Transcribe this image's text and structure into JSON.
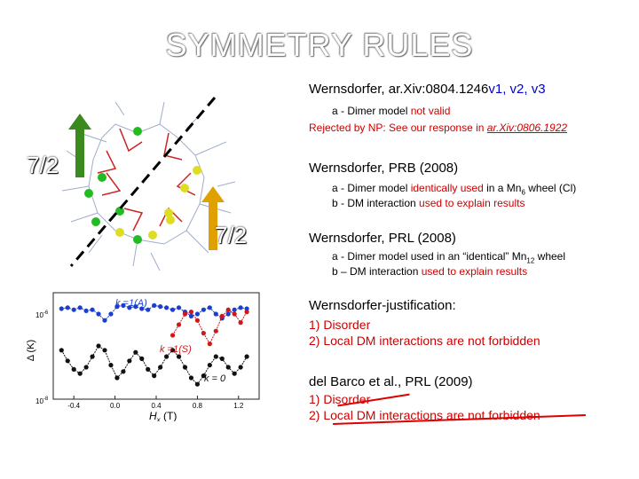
{
  "slide_title": "SYMMETRY RULES",
  "ref1": {
    "prefix": "Wernsdorfer, ar.Xiv:0804.1246",
    "versions": "v1, v2, v3",
    "item_a_prefix": "a -  Dimer model ",
    "item_a_red": "not valid",
    "rejected_text": "Rejected by NP: See our response in ",
    "rejected_link": "ar.Xiv:0806.1922"
  },
  "ref2": {
    "title": "Wernsdorfer, PRB (2008)",
    "a_prefix": "a -  Dimer model ",
    "a_red": "identically used",
    "a_mid": " in a Mn",
    "a_sub": "6",
    "a_end": " wheel (Cl)",
    "b_prefix": "b -  DM interaction ",
    "b_red": "used to explain results"
  },
  "ref3": {
    "title": "Wernsdorfer, PRL (2008)",
    "a_text": "a -  Dimer model used in an “identical” Mn",
    "a_sub": "12",
    "a_end": " wheel",
    "b_prefix": "b – DM interaction ",
    "b_red": "used to explain results"
  },
  "justification": {
    "title": "Wernsdorfer-justification:",
    "items": [
      "1)  Disorder",
      "2)  Local DM interactions are not forbidden"
    ]
  },
  "delbarco": {
    "title": "del Barco et al., PRL (2009)",
    "items": [
      "1)  Disorder",
      "2)  Local DM interactions are not forbidden"
    ]
  },
  "spin_labels": {
    "left": "7/2",
    "right": "7/2"
  },
  "colors": {
    "green_arrow": "#3a8a1e",
    "gold_arrow": "#e0a000",
    "red": "#cc0000",
    "blue": "#0000cc"
  },
  "plot": {
    "y_label": "Δ (K)",
    "x_label": "H",
    "x_label_sub": "x",
    "x_label_unit": " (T)",
    "y_tick_top": "10",
    "y_tick_top_exp": "-6",
    "y_tick_bottom": "10",
    "y_tick_bottom_exp": "-8",
    "x_ticks": [
      "-0.4",
      "0.0",
      "0.4",
      "0.8",
      "1.2"
    ],
    "label_blue": "k =1(A)",
    "label_red": "k =1(S)",
    "label_black": "k = 0"
  },
  "chart_data": {
    "type": "scatter",
    "xlim": [
      -0.6,
      1.4
    ],
    "x_ticks": [
      -0.4,
      0.0,
      0.4,
      0.8,
      1.2
    ],
    "ylabel": "Δ (K)",
    "xlabel": "Hx (T)",
    "series": [
      {
        "name": "k =1(A)",
        "color": "#1a3fd0",
        "x": [
          -0.52,
          -0.46,
          -0.4,
          -0.34,
          -0.28,
          -0.22,
          -0.16,
          -0.1,
          -0.04,
          0.02,
          0.08,
          0.14,
          0.2,
          0.26,
          0.32,
          0.38,
          0.44,
          0.5,
          0.56,
          0.62,
          0.68,
          0.74,
          0.8,
          0.86,
          0.92,
          0.98,
          1.04,
          1.1,
          1.16,
          1.22,
          1.28
        ],
        "y": [
          0.85,
          0.86,
          0.84,
          0.86,
          0.83,
          0.84,
          0.8,
          0.74,
          0.8,
          0.87,
          0.88,
          0.86,
          0.87,
          0.85,
          0.84,
          0.88,
          0.87,
          0.86,
          0.84,
          0.86,
          0.82,
          0.78,
          0.8,
          0.84,
          0.86,
          0.8,
          0.76,
          0.8,
          0.84,
          0.86,
          0.85
        ]
      },
      {
        "name": "k =1(S)",
        "color": "#d01818",
        "x": [
          0.56,
          0.62,
          0.68,
          0.74,
          0.8,
          0.86,
          0.92,
          0.98,
          1.04,
          1.1,
          1.16,
          1.22,
          1.28
        ],
        "y": [
          0.6,
          0.7,
          0.8,
          0.82,
          0.74,
          0.62,
          0.52,
          0.64,
          0.78,
          0.84,
          0.8,
          0.72,
          0.82
        ]
      },
      {
        "name": "k = 0",
        "color": "#111111",
        "x": [
          -0.52,
          -0.46,
          -0.4,
          -0.34,
          -0.28,
          -0.22,
          -0.16,
          -0.1,
          -0.04,
          0.02,
          0.08,
          0.14,
          0.2,
          0.26,
          0.32,
          0.38,
          0.44,
          0.5,
          0.56,
          0.62,
          0.68,
          0.74,
          0.8,
          0.86,
          0.92,
          0.98,
          1.04,
          1.1,
          1.16,
          1.22,
          1.28
        ],
        "y": [
          0.46,
          0.36,
          0.28,
          0.24,
          0.3,
          0.4,
          0.5,
          0.46,
          0.32,
          0.2,
          0.26,
          0.36,
          0.44,
          0.38,
          0.28,
          0.22,
          0.3,
          0.4,
          0.46,
          0.4,
          0.3,
          0.2,
          0.14,
          0.22,
          0.32,
          0.4,
          0.38,
          0.3,
          0.24,
          0.3,
          0.4
        ]
      }
    ]
  }
}
